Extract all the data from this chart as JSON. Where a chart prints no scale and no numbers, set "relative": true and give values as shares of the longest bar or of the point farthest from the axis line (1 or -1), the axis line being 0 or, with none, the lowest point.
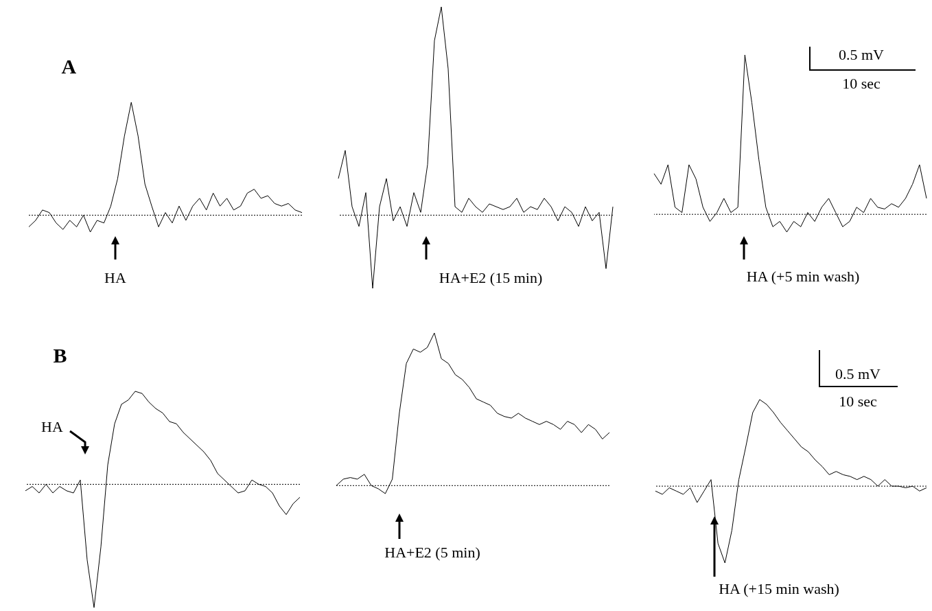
{
  "chart_data": [
    {
      "type": "line",
      "title": "A",
      "relative": true,
      "tick_labels": false,
      "line_style": "solid",
      "categories": [
        null,
        null,
        null,
        null,
        null,
        null,
        null,
        null,
        null,
        null,
        null,
        null,
        null,
        null,
        null,
        null,
        null,
        null,
        null,
        null,
        null,
        null,
        null,
        null,
        null,
        null,
        null,
        null,
        null,
        null,
        null,
        null,
        null,
        null,
        null,
        null,
        null,
        null,
        null,
        null,
        null
      ],
      "series": [
        {
          "color": "#000000",
          "values": [
            0.04,
            0.09,
            0.17,
            0.15,
            0.07,
            0.02,
            0.09,
            0.04,
            0.13,
            0,
            0.09,
            0.07,
            0.2,
            0.41,
            0.74,
            1,
            0.74,
            0.37,
            0.2,
            0.04,
            0.15,
            0.07,
            0.2,
            0.09,
            0.2,
            0.26,
            0.17,
            0.3,
            0.2,
            0.26,
            0.17,
            0.2,
            0.3,
            0.33,
            0.26,
            0.28,
            0.22,
            0.2,
            0.22,
            0.17,
            0.15
          ]
        }
      ],
      "ref_lines": [
        {
          "axis": "y",
          "value": 0.13,
          "line_style": "dotted"
        }
      ],
      "annotations": [
        "HA"
      ]
    },
    {
      "type": "line",
      "relative": true,
      "tick_labels": false,
      "line_style": "solid",
      "categories": [
        null,
        null,
        null,
        null,
        null,
        null,
        null,
        null,
        null,
        null,
        null,
        null,
        null,
        null,
        null,
        null,
        null,
        null,
        null,
        null,
        null,
        null,
        null,
        null,
        null,
        null,
        null,
        null,
        null,
        null,
        null,
        null,
        null,
        null,
        null,
        null,
        null,
        null,
        null,
        null,
        null
      ],
      "series": [
        {
          "color": "#000000",
          "values": [
            0.39,
            0.49,
            0.29,
            0.22,
            0.34,
            0,
            0.29,
            0.39,
            0.24,
            0.29,
            0.22,
            0.34,
            0.27,
            0.44,
            0.88,
            1,
            0.78,
            0.29,
            0.27,
            0.32,
            0.29,
            0.27,
            0.3,
            0.29,
            0.28,
            0.29,
            0.32,
            0.27,
            0.29,
            0.28,
            0.32,
            0.29,
            0.24,
            0.29,
            0.27,
            0.22,
            0.29,
            0.24,
            0.27,
            0.07,
            0.29
          ]
        }
      ],
      "ref_lines": [
        {
          "axis": "y",
          "value": 0.26,
          "line_style": "dotted"
        }
      ],
      "annotations": [
        "HA+E2 (15 min)"
      ]
    },
    {
      "type": "line",
      "relative": true,
      "tick_labels": false,
      "line_style": "solid",
      "categories": [
        null,
        null,
        null,
        null,
        null,
        null,
        null,
        null,
        null,
        null,
        null,
        null,
        null,
        null,
        null,
        null,
        null,
        null,
        null,
        null,
        null,
        null,
        null,
        null,
        null,
        null,
        null,
        null,
        null,
        null,
        null,
        null,
        null,
        null,
        null,
        null,
        null,
        null,
        null,
        null
      ],
      "series": [
        {
          "color": "#000000",
          "values": [
            0.33,
            0.27,
            0.38,
            0.14,
            0.11,
            0.38,
            0.3,
            0.14,
            0.06,
            0.11,
            0.19,
            0.11,
            0.14,
            1,
            0.73,
            0.41,
            0.14,
            0.03,
            0.06,
            0,
            0.06,
            0.03,
            0.11,
            0.06,
            0.14,
            0.19,
            0.11,
            0.03,
            0.06,
            0.14,
            0.11,
            0.19,
            0.14,
            0.13,
            0.16,
            0.14,
            0.19,
            0.27,
            0.38,
            0.19
          ]
        }
      ],
      "ref_lines": [
        {
          "axis": "y",
          "value": 0.1,
          "line_style": "dotted"
        }
      ],
      "annotations": [
        "HA (+5 min wash)",
        "0.5 mV",
        "10 sec"
      ]
    },
    {
      "type": "line",
      "title": "B",
      "relative": true,
      "tick_labels": false,
      "line_style": "solid",
      "categories": [
        null,
        null,
        null,
        null,
        null,
        null,
        null,
        null,
        null,
        null,
        null,
        null,
        null,
        null,
        null,
        null,
        null,
        null,
        null,
        null,
        null,
        null,
        null,
        null,
        null,
        null,
        null,
        null,
        null,
        null,
        null,
        null,
        null,
        null,
        null,
        null,
        null,
        null,
        null,
        null,
        null
      ],
      "series": [
        {
          "color": "#000000",
          "values": [
            0.54,
            0.56,
            0.53,
            0.57,
            0.53,
            0.56,
            0.54,
            0.53,
            0.59,
            0.22,
            0,
            0.28,
            0.66,
            0.85,
            0.94,
            0.96,
            1,
            0.99,
            0.95,
            0.92,
            0.9,
            0.86,
            0.85,
            0.81,
            0.78,
            0.75,
            0.72,
            0.68,
            0.62,
            0.59,
            0.56,
            0.53,
            0.54,
            0.59,
            0.57,
            0.56,
            0.53,
            0.47,
            0.43,
            0.48,
            0.51
          ]
        }
      ],
      "ref_lines": [
        {
          "axis": "y",
          "value": 0.57,
          "line_style": "dotted"
        }
      ],
      "annotations": [
        "HA"
      ]
    },
    {
      "type": "line",
      "relative": true,
      "tick_labels": false,
      "line_style": "solid",
      "categories": [
        null,
        null,
        null,
        null,
        null,
        null,
        null,
        null,
        null,
        null,
        null,
        null,
        null,
        null,
        null,
        null,
        null,
        null,
        null,
        null,
        null,
        null,
        null,
        null,
        null,
        null,
        null,
        null,
        null,
        null,
        null,
        null,
        null,
        null,
        null,
        null,
        null,
        null,
        null,
        null
      ],
      "series": [
        {
          "color": "#000000",
          "values": [
            0.05,
            0.09,
            0.1,
            0.09,
            0.12,
            0.05,
            0.03,
            0,
            0.09,
            0.5,
            0.81,
            0.9,
            0.88,
            0.91,
            1,
            0.84,
            0.81,
            0.74,
            0.71,
            0.66,
            0.59,
            0.57,
            0.55,
            0.5,
            0.48,
            0.47,
            0.5,
            0.47,
            0.45,
            0.43,
            0.45,
            0.43,
            0.4,
            0.45,
            0.43,
            0.38,
            0.43,
            0.4,
            0.34,
            0.38
          ]
        }
      ],
      "ref_lines": [
        {
          "axis": "y",
          "value": 0.05,
          "line_style": "dotted"
        }
      ],
      "annotations": [
        "HA+E2 (5 min)"
      ]
    },
    {
      "type": "line",
      "relative": true,
      "tick_labels": false,
      "line_style": "solid",
      "categories": [
        null,
        null,
        null,
        null,
        null,
        null,
        null,
        null,
        null,
        null,
        null,
        null,
        null,
        null,
        null,
        null,
        null,
        null,
        null,
        null,
        null,
        null,
        null,
        null,
        null,
        null,
        null,
        null,
        null,
        null,
        null,
        null,
        null,
        null,
        null,
        null,
        null,
        null,
        null,
        null
      ],
      "series": [
        {
          "color": "#000000",
          "values": [
            0.44,
            0.42,
            0.46,
            0.44,
            0.42,
            0.46,
            0.37,
            0.44,
            0.51,
            0.12,
            0,
            0.2,
            0.51,
            0.71,
            0.92,
            1,
            0.97,
            0.92,
            0.86,
            0.81,
            0.76,
            0.71,
            0.68,
            0.63,
            0.59,
            0.54,
            0.56,
            0.54,
            0.53,
            0.51,
            0.53,
            0.51,
            0.47,
            0.51,
            0.47,
            0.47,
            0.46,
            0.47,
            0.44,
            0.46
          ]
        }
      ],
      "ref_lines": [
        {
          "axis": "y",
          "value": 0.47,
          "line_style": "dotted"
        }
      ],
      "annotations": [
        "HA (+15 min wash)",
        "0.5 mV",
        "10 sec"
      ]
    }
  ]
}
